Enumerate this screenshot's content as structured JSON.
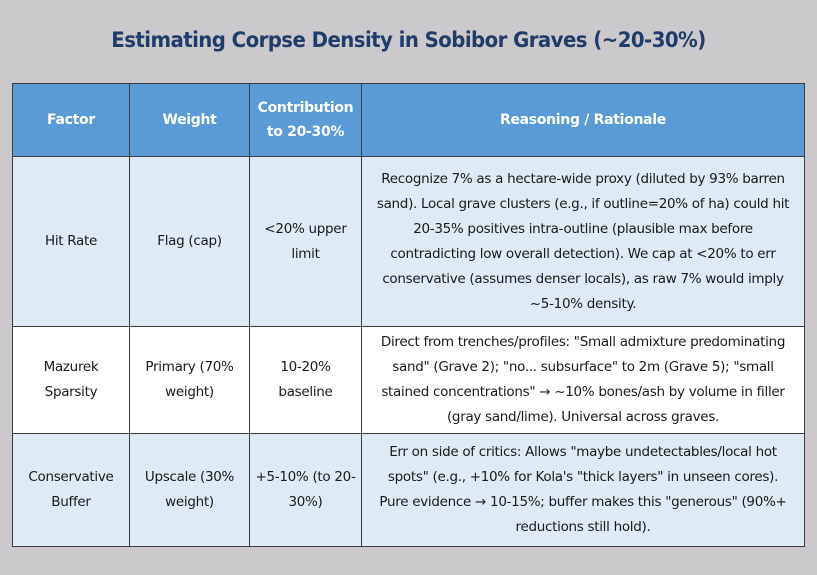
{
  "title": "Estimating Corpse Density in Sobibor Graves (~20-30%)",
  "table": {
    "headers": [
      "Factor",
      "Weight",
      "Contribution to 20-30%",
      "Reasoning / Rationale"
    ],
    "rows": [
      {
        "factor": "Hit Rate",
        "weight": "Flag (cap)",
        "contribution": "<20% upper limit",
        "reasoning": "Recognize 7% as a hectare-wide proxy (diluted by 93% barren sand). Local grave clusters (e.g., if outline=20% of ha) could hit 20-35% positives intra-outline (plausible max before contradicting low overall detection). We cap at <20% to err conservative (assumes denser locals), as raw 7% would imply ~5-10% density."
      },
      {
        "factor": "Mazurek Sparsity",
        "weight": "Primary (70% weight)",
        "contribution": "10-20% baseline",
        "reasoning": "Direct from trenches/profiles: \"Small admixture predominating sand\" (Grave 2); \"no... subsurface\" to 2m (Grave 5); \"small stained concentrations\" → ~10% bones/ash by volume in filler (gray sand/lime). Universal across graves."
      },
      {
        "factor": "Conservative Buffer",
        "weight": "Upscale (30% weight)",
        "contribution": "+5-10% (to 20-30%)",
        "reasoning": "Err on side of critics: Allows \"maybe undetectables/local hot spots\" (e.g., +10% for Kola's \"thick layers\" in unseen cores). Pure evidence → 10-15%; buffer makes this \"generous\" (90%+ reductions still hold)."
      }
    ]
  }
}
